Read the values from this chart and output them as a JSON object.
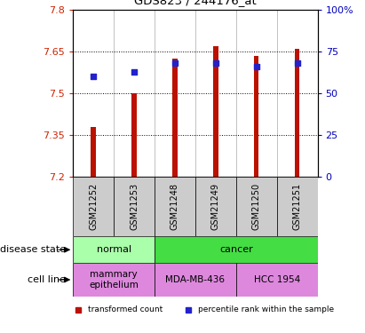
{
  "title": "GDS823 / 244176_at",
  "samples": [
    "GSM21252",
    "GSM21253",
    "GSM21248",
    "GSM21249",
    "GSM21250",
    "GSM21251"
  ],
  "bar_values": [
    7.38,
    7.5,
    7.625,
    7.67,
    7.635,
    7.66
  ],
  "bar_bottom": 7.2,
  "percentile_values": [
    60,
    63,
    68,
    68,
    66,
    68
  ],
  "ylim_left": [
    7.2,
    7.8
  ],
  "ylim_right": [
    0,
    100
  ],
  "yticks_left": [
    7.2,
    7.35,
    7.5,
    7.65,
    7.8
  ],
  "yticks_right": [
    0,
    25,
    50,
    75,
    100
  ],
  "ytick_labels_left": [
    "7.2",
    "7.35",
    "7.5",
    "7.65",
    "7.8"
  ],
  "ytick_labels_right": [
    "0",
    "25",
    "50",
    "75",
    "100%"
  ],
  "bar_color": "#bb1100",
  "percentile_color": "#2222cc",
  "bar_width": 0.12,
  "disease_groups": [
    {
      "label": "normal",
      "cols": [
        0,
        1
      ],
      "color": "#aaffaa"
    },
    {
      "label": "cancer",
      "cols": [
        2,
        3,
        4,
        5
      ],
      "color": "#44dd44"
    }
  ],
  "cell_line_groups": [
    {
      "label": "mammary\nepithelium",
      "cols": [
        0,
        1
      ],
      "color": "#dd88dd"
    },
    {
      "label": "MDA-MB-436",
      "cols": [
        2,
        3
      ],
      "color": "#dd88dd"
    },
    {
      "label": "HCC 1954",
      "cols": [
        4,
        5
      ],
      "color": "#dd88dd"
    }
  ],
  "sample_box_color": "#cccccc",
  "disease_label": "disease state",
  "cell_line_label": "cell line",
  "legend_items": [
    {
      "label": "transformed count",
      "color": "#bb1100"
    },
    {
      "label": "percentile rank within the sample",
      "color": "#2222cc"
    }
  ]
}
